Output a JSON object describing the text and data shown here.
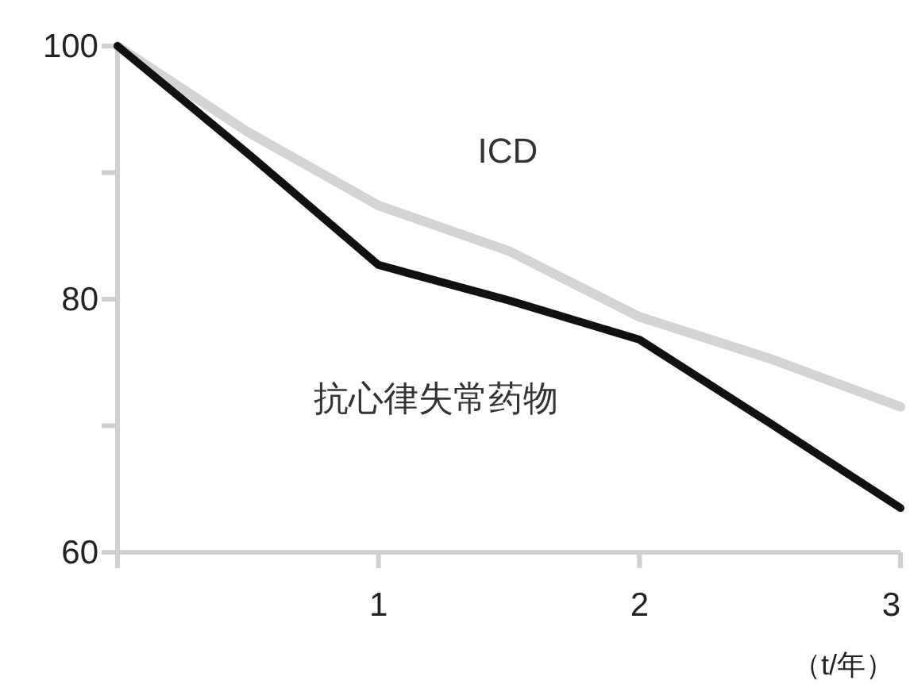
{
  "chart_data": {
    "type": "line",
    "xlabel": "（t/年）",
    "xlim": [
      0,
      3
    ],
    "xticks": [
      {
        "value": 0,
        "label": null
      },
      1,
      2,
      3
    ],
    "ylim": [
      60,
      100
    ],
    "yticks": [
      60,
      {
        "value": 70,
        "label": null
      },
      80,
      {
        "value": 90,
        "label": null
      },
      100
    ],
    "grid": false,
    "legend": false,
    "marker": "none",
    "line_style": "solid",
    "series": [
      {
        "name": "ICD",
        "color": "#d4d4d4",
        "x": [
          0,
          0.5,
          1,
          1.5,
          2,
          2.5,
          3
        ],
        "values": [
          100,
          93.2,
          87.4,
          83.8,
          78.6,
          75.3,
          71.5
        ]
      },
      {
        "name": "抗心律失常药物",
        "color": "#111111",
        "x": [
          0,
          0.5,
          1,
          1.5,
          2,
          2.5,
          3
        ],
        "values": [
          100,
          91.5,
          82.7,
          79.9,
          76.8,
          70.2,
          63.5
        ]
      }
    ]
  }
}
